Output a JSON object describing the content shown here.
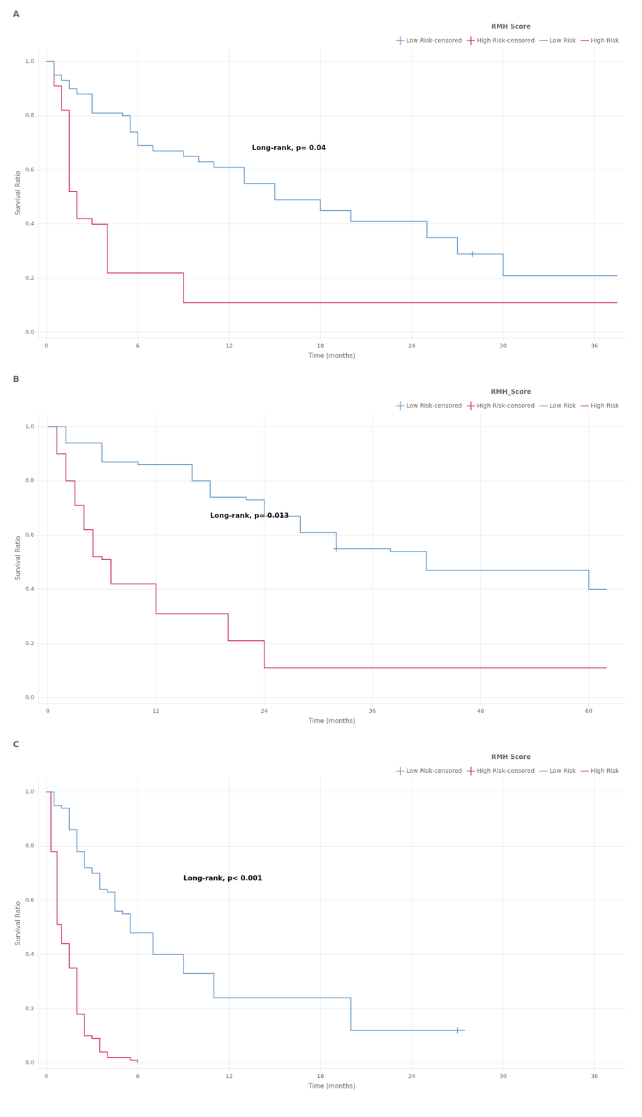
{
  "chart_data": [
    {
      "type": "line",
      "title": "A",
      "legend_title": "RMH Score",
      "annotations": [
        {
          "text": "Long-rank, p= 0.04",
          "x": 13.5,
          "y": 0.68
        }
      ],
      "xlabel": "Time (months)",
      "ylabel": "Survival Ratio",
      "xlim": [
        -0.5,
        38
      ],
      "ylim": [
        -0.02,
        1.05
      ],
      "xticks": [
        0,
        6,
        12,
        18,
        24,
        30,
        36
      ],
      "yticks": [
        {
          "value": 0.0,
          "label": "0.0"
        },
        0.2,
        0.4,
        0.6,
        0.8,
        {
          "value": 1.0,
          "label": "1.0"
        }
      ],
      "grid": true,
      "legend": "upper right",
      "series": [
        {
          "name": "Low Risk",
          "type": "line",
          "line_style": "steps-post",
          "color": "#6699CC",
          "x": [
            0,
            0.5,
            1.0,
            1.5,
            2.0,
            3.0,
            4.0,
            5.0,
            5.5,
            6.0,
            7.0,
            8.0,
            9.0,
            10.0,
            11.0,
            12.0,
            13.0,
            15.0,
            17.0,
            18.0,
            20.0,
            21.0,
            22.0,
            24.0,
            25.0,
            27.0,
            28.0,
            30.0,
            32.0,
            36.0,
            37.5
          ],
          "values": [
            1.0,
            0.95,
            0.93,
            0.9,
            0.88,
            0.81,
            0.81,
            0.8,
            0.74,
            0.69,
            0.67,
            0.67,
            0.65,
            0.63,
            0.61,
            0.61,
            0.55,
            0.49,
            0.49,
            0.45,
            0.41,
            0.41,
            0.41,
            0.41,
            0.35,
            0.29,
            0.29,
            0.21,
            0.21,
            0.21,
            0.21
          ]
        },
        {
          "name": "High Risk",
          "type": "line",
          "line_style": "steps-post",
          "color": "#CC3366",
          "x": [
            0,
            0.5,
            1.0,
            1.5,
            2.0,
            2.5,
            3.0,
            4.0,
            5.0,
            6.0,
            7.0,
            8.0,
            9.0,
            10.0,
            12.0,
            13.0,
            37.5
          ],
          "values": [
            1.0,
            0.91,
            0.82,
            0.52,
            0.42,
            0.42,
            0.4,
            0.22,
            0.22,
            0.22,
            0.22,
            0.22,
            0.11,
            0.11,
            0.11,
            0.11,
            0.11
          ]
        },
        {
          "name": "Low Risk-censored",
          "type": "scatter",
          "marker": "+",
          "color": "#6699CC",
          "x": [
            28.0
          ],
          "values": [
            0.29
          ]
        },
        {
          "name": "High Risk-censored",
          "type": "scatter",
          "marker": "+",
          "color": "#CC3366",
          "x": [],
          "values": []
        }
      ]
    },
    {
      "type": "line",
      "title": "B",
      "legend_title": "RMH_Score",
      "annotations": [
        {
          "text": "Long-rank, p= 0.013",
          "x": 18,
          "y": 0.67
        }
      ],
      "xlabel": "Time (months)",
      "ylabel": "Survival Ratio",
      "xlim": [
        -1,
        64
      ],
      "ylim": [
        -0.02,
        1.05
      ],
      "xticks": [
        0,
        12,
        24,
        36,
        48,
        60
      ],
      "yticks": [
        {
          "value": 0.0,
          "label": "0.0"
        },
        0.2,
        0.4,
        0.6,
        0.8,
        {
          "value": 1.0,
          "label": "1.0"
        }
      ],
      "grid": true,
      "legend": "upper right",
      "series": [
        {
          "name": "Low Risk",
          "type": "line",
          "line_style": "steps-post",
          "color": "#6699CC",
          "x": [
            0,
            2,
            4,
            6,
            8,
            10,
            12,
            14,
            16,
            18,
            20,
            22,
            24,
            26,
            28,
            30,
            32,
            34,
            36,
            38,
            40,
            42,
            44,
            48,
            50,
            56,
            58,
            60,
            62
          ],
          "values": [
            1.0,
            0.94,
            0.94,
            0.87,
            0.87,
            0.86,
            0.86,
            0.86,
            0.8,
            0.74,
            0.74,
            0.73,
            0.67,
            0.67,
            0.61,
            0.61,
            0.55,
            0.55,
            0.55,
            0.54,
            0.54,
            0.47,
            0.47,
            0.47,
            0.47,
            0.47,
            0.47,
            0.4,
            0.4
          ]
        },
        {
          "name": "High Risk",
          "type": "line",
          "line_style": "steps-post",
          "color": "#CC3366",
          "x": [
            0,
            1,
            2,
            3,
            4,
            5,
            6,
            7,
            8,
            10,
            12,
            14,
            16,
            20,
            24,
            62
          ],
          "values": [
            1.0,
            0.9,
            0.8,
            0.71,
            0.62,
            0.52,
            0.51,
            0.42,
            0.42,
            0.42,
            0.31,
            0.31,
            0.31,
            0.21,
            0.11,
            0.11
          ]
        },
        {
          "name": "Low Risk-censored",
          "type": "scatter",
          "marker": "+",
          "color": "#6699CC",
          "x": [
            32.0
          ],
          "values": [
            0.55
          ]
        },
        {
          "name": "High Risk-censored",
          "type": "scatter",
          "marker": "+",
          "color": "#CC3366",
          "x": [],
          "values": []
        }
      ]
    },
    {
      "type": "line",
      "title": "C",
      "legend_title": "RMH Score",
      "annotations": [
        {
          "text": "Long-rank, p< 0.001",
          "x": 9,
          "y": 0.68
        }
      ],
      "xlabel": "Time (months)",
      "ylabel": "Survival Ratio",
      "xlim": [
        -0.5,
        38
      ],
      "ylim": [
        -0.02,
        1.05
      ],
      "xticks": [
        0,
        6,
        12,
        18,
        24,
        30,
        36
      ],
      "yticks": [
        {
          "value": 0.0,
          "label": "0.0"
        },
        0.2,
        0.4,
        0.6,
        0.8,
        {
          "value": 1.0,
          "label": "1.0"
        }
      ],
      "grid": true,
      "legend": "upper right",
      "series": [
        {
          "name": "Low Risk",
          "type": "line",
          "line_style": "steps-post",
          "color": "#6699CC",
          "x": [
            0,
            0.5,
            1.0,
            1.5,
            2.0,
            2.5,
            3.0,
            3.5,
            4.0,
            4.5,
            5.0,
            5.5,
            6.0,
            7.0,
            8.0,
            9.0,
            10.0,
            11.0,
            12.0,
            13.0,
            14.0,
            18.0,
            20.0,
            22.0,
            24.0,
            26.0,
            27.5
          ],
          "values": [
            1.0,
            0.95,
            0.94,
            0.86,
            0.78,
            0.72,
            0.7,
            0.64,
            0.63,
            0.56,
            0.55,
            0.48,
            0.48,
            0.4,
            0.4,
            0.33,
            0.33,
            0.24,
            0.24,
            0.24,
            0.24,
            0.24,
            0.12,
            0.12,
            0.12,
            0.12,
            0.12
          ]
        },
        {
          "name": "High Risk",
          "type": "line",
          "line_style": "steps-post",
          "color": "#CC3366",
          "x": [
            0,
            0.3,
            0.7,
            1.0,
            1.5,
            2.0,
            2.5,
            3.0,
            3.5,
            4.0,
            5.0,
            5.5,
            6.0
          ],
          "values": [
            1.0,
            0.78,
            0.51,
            0.44,
            0.35,
            0.18,
            0.1,
            0.09,
            0.04,
            0.02,
            0.02,
            0.01,
            0.0
          ]
        },
        {
          "name": "Low Risk-censored",
          "type": "scatter",
          "marker": "+",
          "color": "#6699CC",
          "x": [
            27.0
          ],
          "values": [
            0.12
          ]
        },
        {
          "name": "High Risk-censored",
          "type": "scatter",
          "marker": "+",
          "color": "#CC3366",
          "x": [],
          "values": []
        }
      ]
    }
  ]
}
